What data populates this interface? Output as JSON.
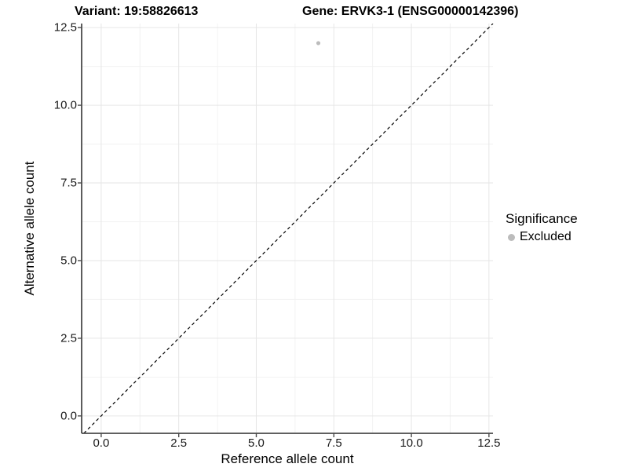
{
  "header": {
    "variant_title": "Variant: 19:58826613",
    "gene_title": "Gene: ERVK3-1 (ENSG00000142396)"
  },
  "chart_data": {
    "type": "scatter",
    "title_left": "Variant: 19:58826613",
    "title_right": "Gene: ERVK3-1 (ENSG00000142396)",
    "xlabel": "Reference allele count",
    "ylabel": "Alternative allele count",
    "xlim": [
      -0.63,
      12.63
    ],
    "ylim": [
      -0.56,
      12.63
    ],
    "x_ticks": [
      0.0,
      2.5,
      5.0,
      7.5,
      10.0,
      12.5
    ],
    "y_ticks": [
      0.0,
      2.5,
      5.0,
      7.5,
      10.0,
      12.5
    ],
    "x_tick_labels": [
      "0.0",
      "2.5",
      "5.0",
      "7.5",
      "10.0",
      "12.5"
    ],
    "y_tick_labels": [
      "0.0",
      "2.5",
      "5.0",
      "7.5",
      "10.0",
      "12.5"
    ],
    "minor_tick_step": 1.25,
    "grid": true,
    "legend_position": "right",
    "reference_line": {
      "type": "identity",
      "slope": 1,
      "intercept": 0,
      "style": "dashed",
      "color": "#000000"
    },
    "series": [
      {
        "name": "Excluded",
        "color": "#bcbcbc",
        "points": [
          {
            "x": 7,
            "y": 12
          }
        ]
      }
    ],
    "legend": {
      "title": "Significance",
      "entries": [
        {
          "label": "Excluded",
          "color": "#bcbcbc"
        }
      ]
    }
  },
  "colors": {
    "background": "#ffffff",
    "grid_major": "#e6e6e6",
    "grid_minor": "#f2f2f2",
    "axis_line": "#4a4a4a",
    "tick_mark": "#4a4a4a",
    "tick_text": "#1a1a1a",
    "point": "#bcbcbc",
    "ref_line": "#000000"
  }
}
